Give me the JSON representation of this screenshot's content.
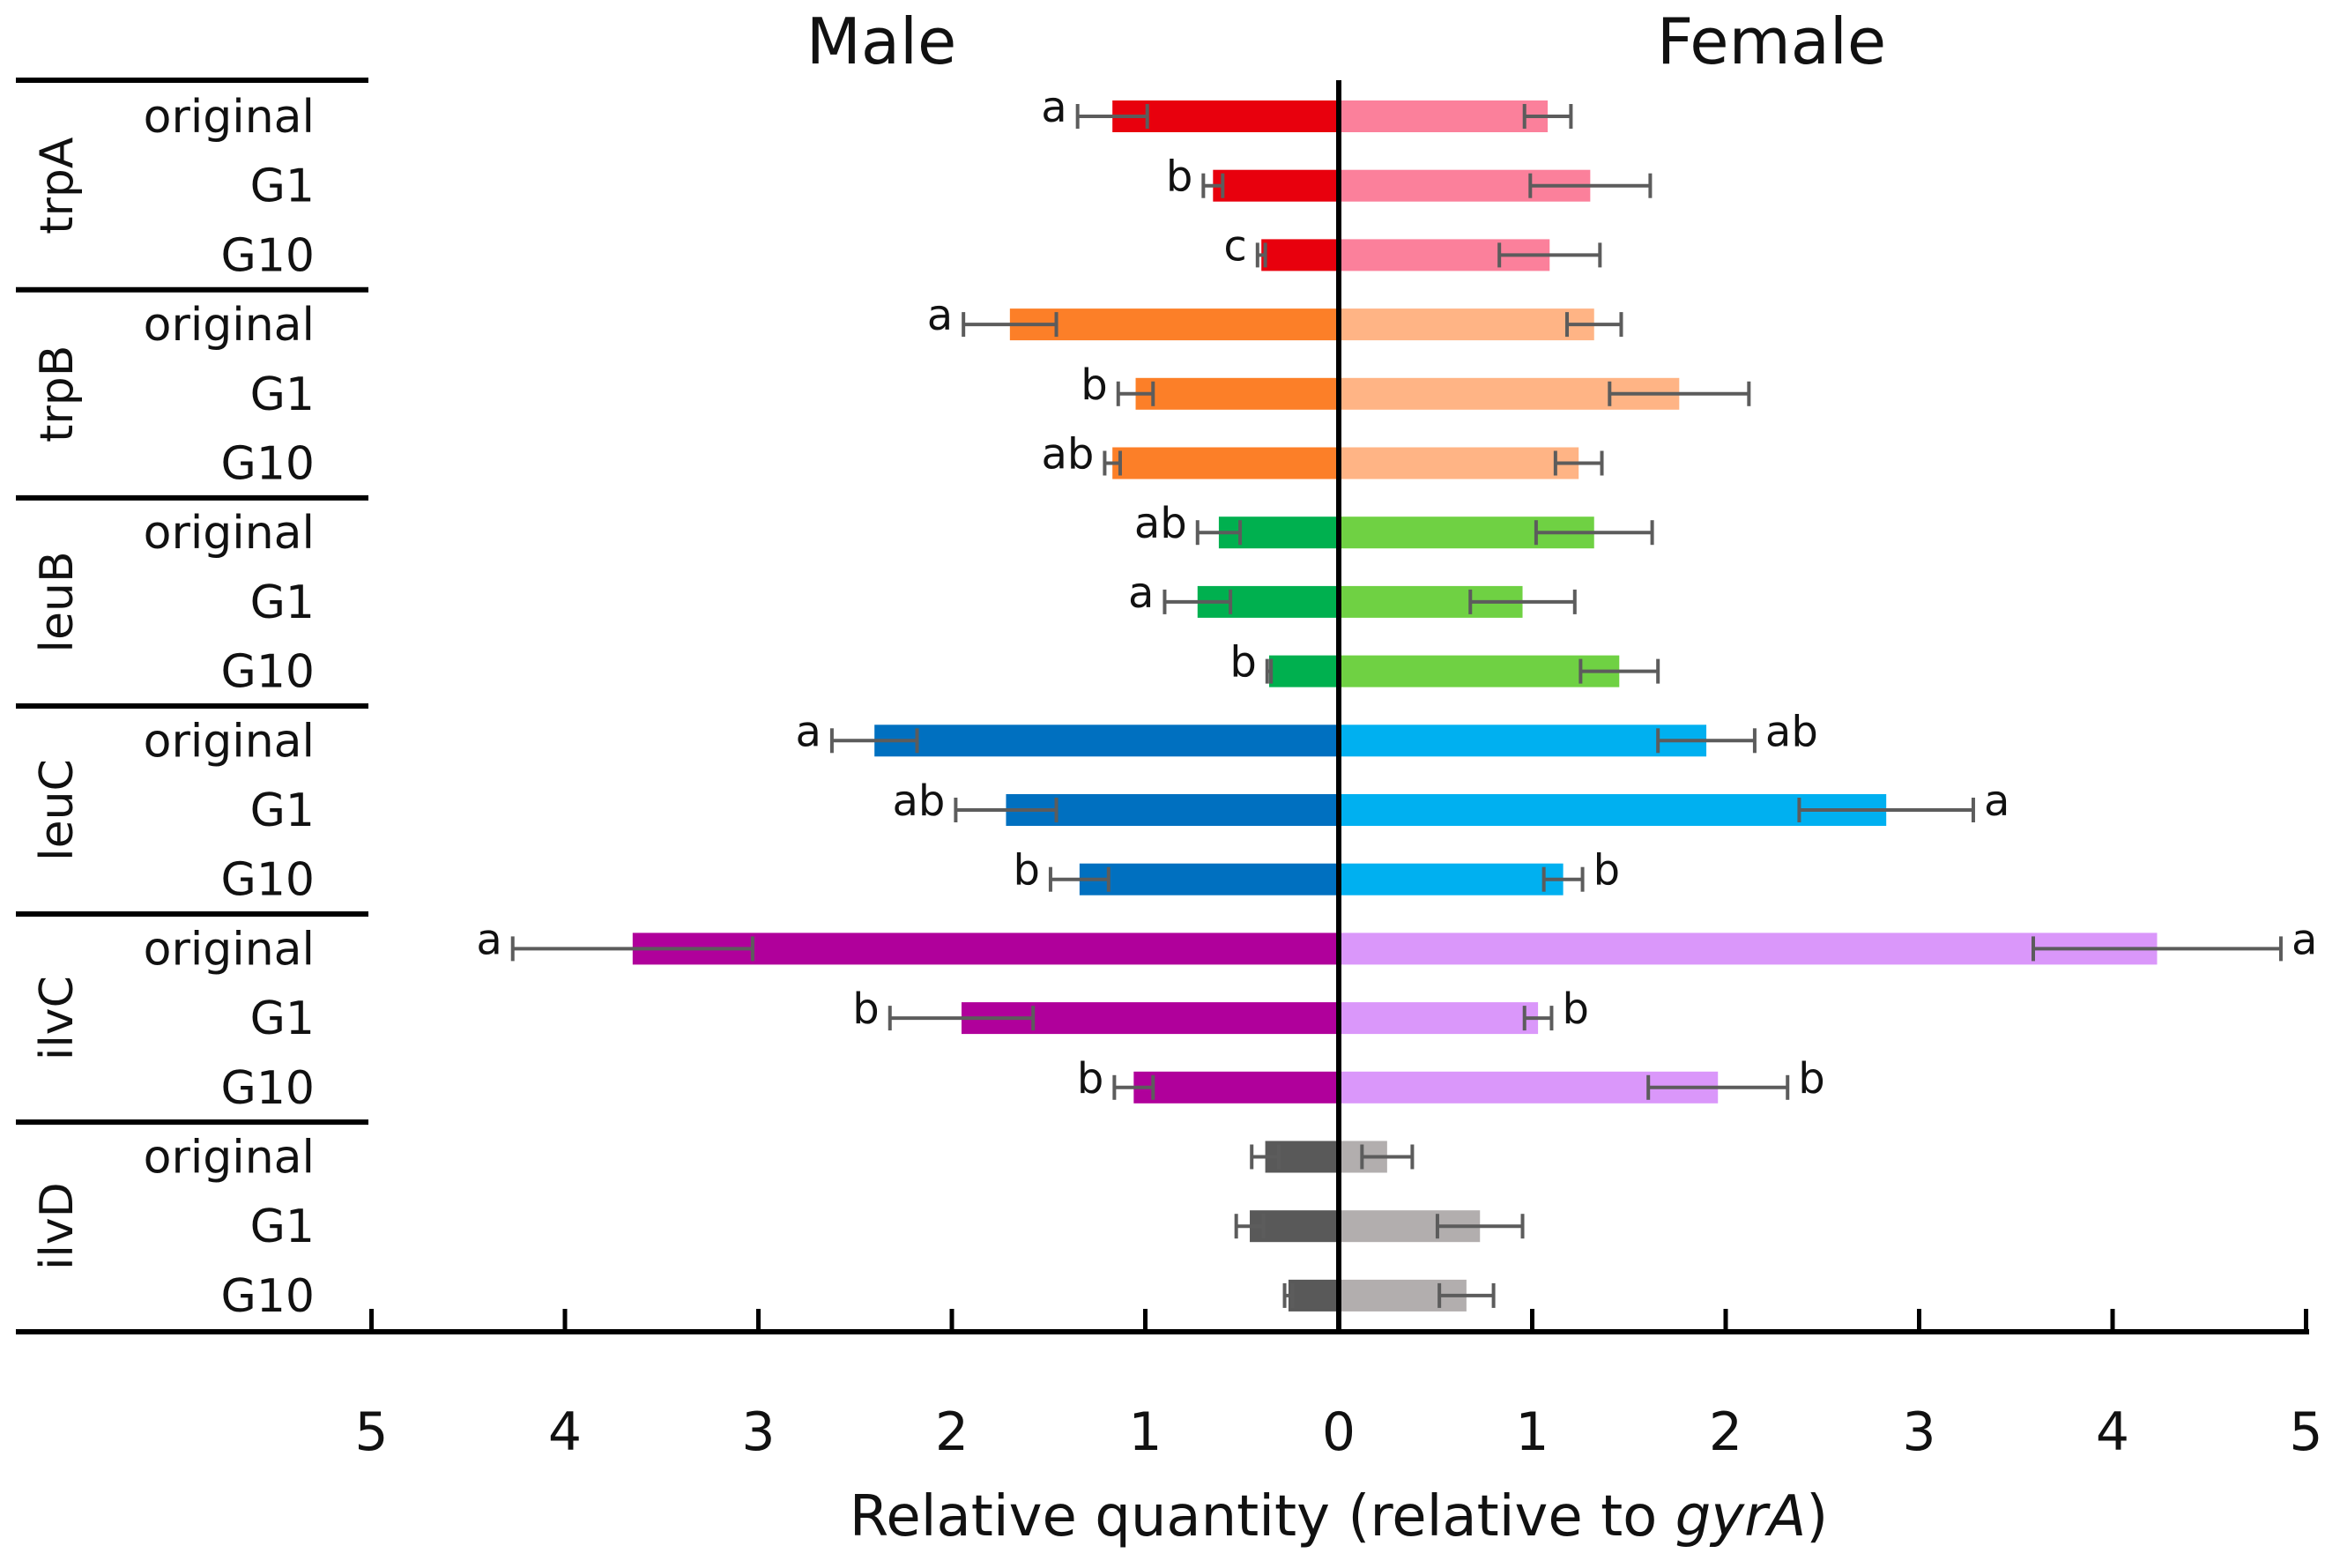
{
  "chart_data": {
    "type": "bar",
    "orientation": "horizontal-butterfly",
    "titles": {
      "left": "Male",
      "right": "Female"
    },
    "xlabel_prefix": "Relative quantity (relative to ",
    "xlabel_italic": "gyrA",
    "xlabel_suffix": ")",
    "xlim": [
      0,
      5
    ],
    "xticks": [
      "5",
      "4",
      "3",
      "2",
      "1",
      "0",
      "1",
      "2",
      "3",
      "4",
      "5"
    ],
    "groups": [
      {
        "gene": "trpA",
        "male_color": "#e8000d",
        "female_color": "#fb809b",
        "rows": [
          {
            "label": "original",
            "male": {
              "value": 1.17,
              "error": 0.18,
              "sig": "a"
            },
            "female": {
              "value": 1.08,
              "error": 0.12,
              "sig": ""
            }
          },
          {
            "label": "G1",
            "male": {
              "value": 0.65,
              "error": 0.05,
              "sig": "b"
            },
            "female": {
              "value": 1.3,
              "error": 0.31,
              "sig": ""
            }
          },
          {
            "label": "G10",
            "male": {
              "value": 0.4,
              "error": 0.02,
              "sig": "c"
            },
            "female": {
              "value": 1.09,
              "error": 0.26,
              "sig": ""
            }
          }
        ]
      },
      {
        "gene": "trpB",
        "male_color": "#fc7f28",
        "female_color": "#ffb485",
        "rows": [
          {
            "label": "original",
            "male": {
              "value": 1.7,
              "error": 0.24,
              "sig": "a"
            },
            "female": {
              "value": 1.32,
              "error": 0.14,
              "sig": ""
            }
          },
          {
            "label": "G1",
            "male": {
              "value": 1.05,
              "error": 0.09,
              "sig": "b"
            },
            "female": {
              "value": 1.76,
              "error": 0.36,
              "sig": ""
            }
          },
          {
            "label": "G10",
            "male": {
              "value": 1.17,
              "error": 0.04,
              "sig": "ab"
            },
            "female": {
              "value": 1.24,
              "error": 0.12,
              "sig": ""
            }
          }
        ]
      },
      {
        "gene": "leuB",
        "male_color": "#00b04f",
        "female_color": "#6fd143",
        "rows": [
          {
            "label": "original",
            "male": {
              "value": 0.62,
              "error": 0.11,
              "sig": "ab"
            },
            "female": {
              "value": 1.32,
              "error": 0.3,
              "sig": ""
            }
          },
          {
            "label": "G1",
            "male": {
              "value": 0.73,
              "error": 0.17,
              "sig": "a"
            },
            "female": {
              "value": 0.95,
              "error": 0.27,
              "sig": ""
            }
          },
          {
            "label": "G10",
            "male": {
              "value": 0.36,
              "error": 0.01,
              "sig": "b"
            },
            "female": {
              "value": 1.45,
              "error": 0.2,
              "sig": ""
            }
          }
        ]
      },
      {
        "gene": "leuC",
        "male_color": "#0070c0",
        "female_color": "#00b0f0",
        "rows": [
          {
            "label": "original",
            "male": {
              "value": 2.4,
              "error": 0.22,
              "sig": "a"
            },
            "female": {
              "value": 1.9,
              "error": 0.25,
              "sig": "ab"
            }
          },
          {
            "label": "G1",
            "male": {
              "value": 1.72,
              "error": 0.26,
              "sig": "ab"
            },
            "female": {
              "value": 2.83,
              "error": 0.45,
              "sig": "a"
            }
          },
          {
            "label": "G10",
            "male": {
              "value": 1.34,
              "error": 0.15,
              "sig": "b"
            },
            "female": {
              "value": 1.16,
              "error": 0.1,
              "sig": "b"
            }
          }
        ]
      },
      {
        "gene": "ilvC",
        "male_color": "#b0009b",
        "female_color": "#da97fa",
        "rows": [
          {
            "label": "original",
            "male": {
              "value": 3.65,
              "error": 0.62,
              "sig": "a"
            },
            "female": {
              "value": 4.23,
              "error": 0.64,
              "sig": "a"
            }
          },
          {
            "label": "G1",
            "male": {
              "value": 1.95,
              "error": 0.37,
              "sig": "b"
            },
            "female": {
              "value": 1.03,
              "error": 0.07,
              "sig": "b"
            }
          },
          {
            "label": "G10",
            "male": {
              "value": 1.06,
              "error": 0.1,
              "sig": "b"
            },
            "female": {
              "value": 1.96,
              "error": 0.36,
              "sig": "b"
            }
          }
        ]
      },
      {
        "gene": "ilvD",
        "male_color": "#595959",
        "female_color": "#b2aeae",
        "rows": [
          {
            "label": "original",
            "male": {
              "value": 0.38,
              "error": 0.07,
              "sig": ""
            },
            "female": {
              "value": 0.25,
              "error": 0.13,
              "sig": ""
            }
          },
          {
            "label": "G1",
            "male": {
              "value": 0.46,
              "error": 0.07,
              "sig": ""
            },
            "female": {
              "value": 0.73,
              "error": 0.22,
              "sig": ""
            }
          },
          {
            "label": "G10",
            "male": {
              "value": 0.26,
              "error": 0.02,
              "sig": ""
            },
            "female": {
              "value": 0.66,
              "error": 0.14,
              "sig": ""
            }
          }
        ]
      }
    ]
  }
}
